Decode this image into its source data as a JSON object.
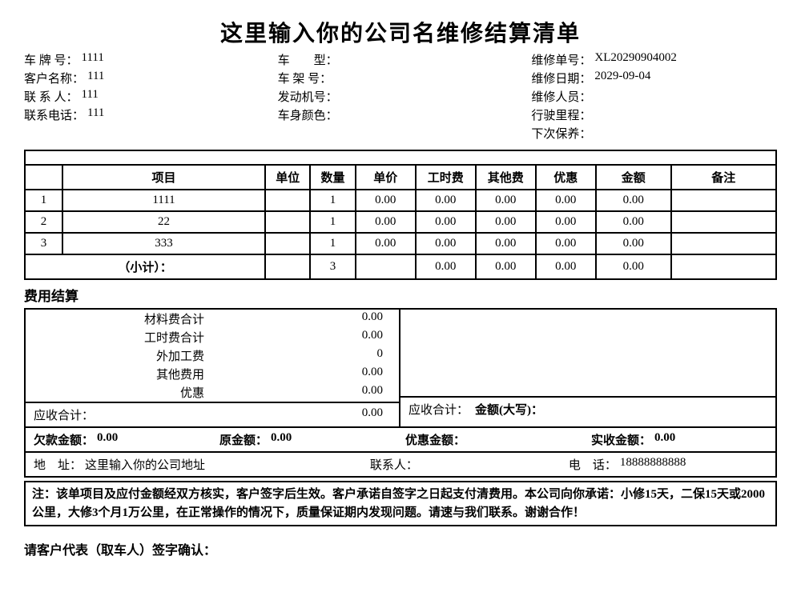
{
  "title": "这里输入你的公司名维修结算清单",
  "header": {
    "left": [
      {
        "label": "车 牌 号：",
        "value": "1111"
      },
      {
        "label": "客户名称：",
        "value": "111"
      },
      {
        "label": "联 系 人：",
        "value": "111"
      },
      {
        "label": "联系电话：",
        "value": "111"
      }
    ],
    "middle": [
      {
        "label": "车　　型：",
        "value": ""
      },
      {
        "label": "车 架 号：",
        "value": ""
      },
      {
        "label": "发动机号：",
        "value": ""
      },
      {
        "label": "车身颜色：",
        "value": ""
      }
    ],
    "right": [
      {
        "label": "维修单号：",
        "value": "XL20290904002"
      },
      {
        "label": "维修日期：",
        "value": "2029-09-04"
      },
      {
        "label": "维修人员：",
        "value": ""
      },
      {
        "label": "行驶里程：",
        "value": ""
      },
      {
        "label": "下次保养：",
        "value": ""
      }
    ]
  },
  "items_table": {
    "columns": [
      "",
      "项目",
      "单位",
      "数量",
      "单价",
      "工时费",
      "其他费",
      "优惠",
      "金额",
      "备注"
    ],
    "col_widths": [
      "5%",
      "27%",
      "6%",
      "6%",
      "8%",
      "8%",
      "8%",
      "8%",
      "10%",
      "14%"
    ],
    "rows": [
      [
        "1",
        "1111",
        "",
        "1",
        "0.00",
        "0.00",
        "0.00",
        "0.00",
        "0.00",
        ""
      ],
      [
        "2",
        "22",
        "",
        "1",
        "0.00",
        "0.00",
        "0.00",
        "0.00",
        "0.00",
        ""
      ],
      [
        "3",
        "333",
        "",
        "1",
        "0.00",
        "0.00",
        "0.00",
        "0.00",
        "0.00",
        ""
      ]
    ],
    "subtotal": [
      "（小计）：",
      "",
      "3",
      "",
      "0.00",
      "0.00",
      "0.00",
      "0.00",
      ""
    ]
  },
  "settlement": {
    "heading": "费用结算",
    "lines": [
      {
        "label": "材料费合计",
        "value": "0.00"
      },
      {
        "label": "工时费合计",
        "value": "0.00"
      },
      {
        "label": "外加工费",
        "value": "0"
      },
      {
        "label": "其他费用",
        "value": "0.00"
      },
      {
        "label": "优惠",
        "value": "0.00"
      }
    ],
    "receivable_label": "应收合计：",
    "receivable_value": "0.00",
    "right_receivable_label": "应收合计：",
    "right_amount_label": "金额(大写)："
  },
  "totals": {
    "owed_label": "欠款金额：",
    "owed_value": "0.00",
    "original_label": "原金额：",
    "original_value": "0.00",
    "discount_label": "优惠金额：",
    "discount_value": "",
    "actual_label": "实收金额：",
    "actual_value": "0.00"
  },
  "address": {
    "addr_label": "地　址：",
    "addr_value": "这里输入你的公司地址",
    "contact_label": "联系人：",
    "contact_value": "",
    "phone_label": "电　话：",
    "phone_value": "18888888888"
  },
  "note": "注：该单项目及应付金额经双方核实，客户签字后生效。客户承诺自签字之日起支付清费用。本公司向你承诺：小修15天，二保15天或2000公里，大修3个月1万公里，在正常操作的情况下，质量保证期内发现问题。请速与我们联系。谢谢合作！",
  "sign": "请客户代表（取车人）签字确认："
}
